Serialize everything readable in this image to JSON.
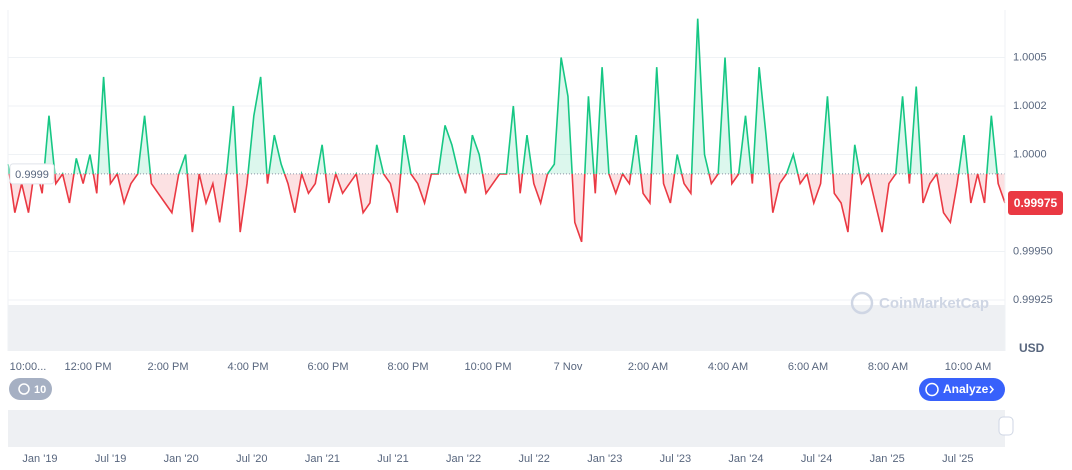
{
  "chart_data": {
    "type": "line",
    "values": [
      0.99995,
      0.9997,
      0.99985,
      0.9997,
      0.99995,
      0.9998,
      1.0002,
      0.99985,
      0.9999,
      0.99975,
      0.99998,
      0.99985,
      1.0,
      0.9998,
      1.0004,
      0.99985,
      0.9999,
      0.99975,
      0.99985,
      0.9999,
      1.0002,
      0.99985,
      0.9998,
      0.99975,
      0.9997,
      0.9999,
      1.0,
      0.9996,
      0.9999,
      0.99975,
      0.99985,
      0.99965,
      0.9999,
      1.00025,
      0.9996,
      0.99985,
      1.0002,
      1.0004,
      0.99985,
      1.0001,
      0.99995,
      0.99985,
      0.9997,
      0.9999,
      0.9998,
      0.99985,
      1.00005,
      0.99975,
      0.9999,
      0.9998,
      0.99985,
      0.9999,
      0.9997,
      0.99975,
      1.00005,
      0.9999,
      0.99985,
      0.9997,
      1.0001,
      0.9999,
      0.99985,
      0.99975,
      0.9999,
      0.9999,
      1.00015,
      1.00005,
      0.9999,
      0.9998,
      1.0001,
      1.0,
      0.9998,
      0.99985,
      0.9999,
      0.9999,
      1.00025,
      0.9998,
      1.0001,
      0.99985,
      0.99975,
      0.9999,
      0.99995,
      1.0005,
      1.0003,
      0.99965,
      0.99955,
      1.0003,
      0.9998,
      1.00045,
      0.9999,
      0.9998,
      0.9999,
      0.99985,
      1.0001,
      0.9998,
      0.99975,
      1.00045,
      0.99985,
      0.99975,
      1.0,
      0.99985,
      0.9998,
      1.0007,
      1.0,
      0.99985,
      0.9999,
      1.0005,
      0.99985,
      0.9999,
      1.0002,
      0.99985,
      1.00045,
      1.0001,
      0.9997,
      0.99985,
      0.9999,
      1.0,
      0.99985,
      0.9999,
      0.99975,
      0.99985,
      1.0003,
      0.9998,
      0.99975,
      0.9996,
      1.00005,
      0.99985,
      0.9999,
      0.99975,
      0.9996,
      0.99985,
      0.9999,
      1.0003,
      0.99985,
      1.00035,
      0.99975,
      0.99985,
      0.9999,
      0.9997,
      0.99965,
      0.99985,
      1.0001,
      0.99975,
      0.9999,
      0.99975,
      1.0002,
      0.99985,
      0.99975
    ],
    "baseline": 0.9999,
    "color_up": "#16c784",
    "color_down": "#ea3943",
    "ylim": [
      0.99925,
      1.00075
    ],
    "yticks": [
      0.99925,
      {
        "value": 0.9995,
        "label": "0.99950"
      },
      {
        "value": 1,
        "label": "1.0000"
      },
      {
        "value": 1.00025,
        "label": "1.0002"
      },
      1.0005
    ],
    "grid": true,
    "x_labels": [
      "10:00...",
      "12:00 PM",
      "2:00 PM",
      "4:00 PM",
      "6:00 PM",
      "8:00 PM",
      "10:00 PM",
      "7 Nov",
      "2:00 AM",
      "4:00 AM",
      "6:00 AM",
      "8:00 AM",
      "10:00 AM"
    ],
    "currency": "USD"
  },
  "ui": {
    "watermark": "CoinMarketCap",
    "history_button": "10",
    "analyze_button": "Analyze",
    "navigator_labels": [
      "Jan '19",
      "Jul '19",
      "Jan '20",
      "Jul '20",
      "Jan '21",
      "Jul '21",
      "Jan '22",
      "Jul '22",
      "Jan '23",
      "Jul '23",
      "Jan '24",
      "Jul '24",
      "Jan '25",
      "Jul '25"
    ]
  }
}
